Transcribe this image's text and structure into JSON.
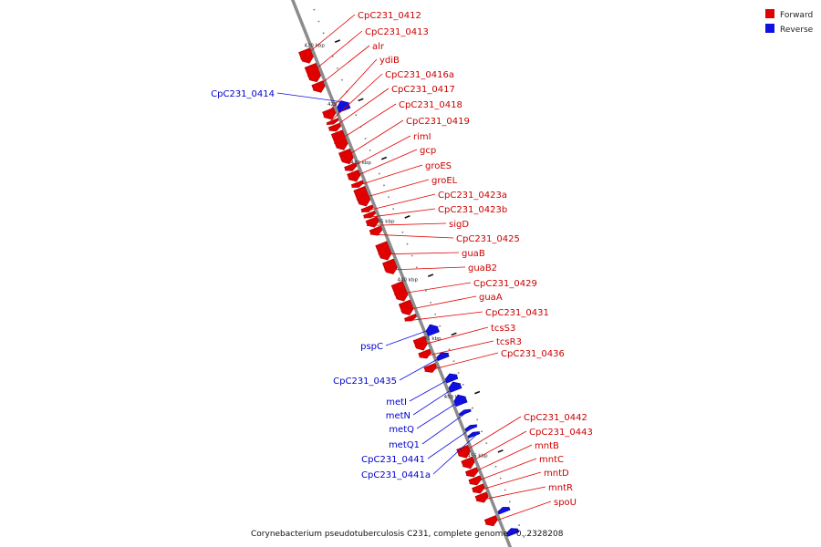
{
  "colors": {
    "forward": "#e00000",
    "reverse": "#1010e0",
    "backbone": "#8c8c8c",
    "forward_label": "#cc0000",
    "reverse_label": "#0000cc"
  },
  "legend": [
    {
      "label": "Forward",
      "strand": "forward"
    },
    {
      "label": "Reverse",
      "strand": "reverse"
    }
  ],
  "caption": "Corynebacterium pseudotuberculosis C231, complete genome - 0..2328208",
  "ticks": [
    {
      "label": "420 kbp",
      "kbp": 420
    },
    {
      "label": "425 kbp",
      "kbp": 425
    },
    {
      "label": "430 kbp",
      "kbp": 430
    },
    {
      "label": "435 kbp",
      "kbp": 435
    },
    {
      "label": "440 kbp",
      "kbp": 440
    },
    {
      "label": "445 kbp",
      "kbp": 445
    },
    {
      "label": "450 kbp",
      "kbp": 450
    },
    {
      "label": "455 kbp",
      "kbp": 455
    }
  ],
  "genes": [
    {
      "name": "CpC231_0412",
      "strand": "forward",
      "start": 419.7,
      "end": 420.8
    },
    {
      "name": "CpC231_0413",
      "strand": "forward",
      "start": 421.0,
      "end": 422.4
    },
    {
      "name": "alr",
      "strand": "forward",
      "start": 422.5,
      "end": 423.3
    },
    {
      "name": "ydiB",
      "strand": "forward",
      "start": 424.8,
      "end": 425.6
    },
    {
      "name": "CpC231_0414",
      "strand": "reverse",
      "start": 424.5,
      "end": 425.3
    },
    {
      "name": "CpC231_0416a",
      "strand": "forward",
      "start": 425.7,
      "end": 426.0
    },
    {
      "name": "CpC231_0417",
      "strand": "forward",
      "start": 426.1,
      "end": 426.6
    },
    {
      "name": "CpC231_0418",
      "strand": "forward",
      "start": 426.7,
      "end": 428.2
    },
    {
      "name": "CpC231_0419",
      "strand": "forward",
      "start": 428.3,
      "end": 429.4
    },
    {
      "name": "rimI",
      "strand": "forward",
      "start": 429.5,
      "end": 430.0
    },
    {
      "name": "gcp",
      "strand": "forward",
      "start": 430.1,
      "end": 430.9
    },
    {
      "name": "groES",
      "strand": "forward",
      "start": 431.0,
      "end": 431.4
    },
    {
      "name": "groEL",
      "strand": "forward",
      "start": 431.5,
      "end": 433.0
    },
    {
      "name": "CpC231_0423a",
      "strand": "forward",
      "start": 433.1,
      "end": 433.5
    },
    {
      "name": "CpC231_0423b",
      "strand": "forward",
      "start": 433.6,
      "end": 434.0
    },
    {
      "name": "sigD",
      "strand": "forward",
      "start": 434.1,
      "end": 434.8
    },
    {
      "name": "CpC231_0425",
      "strand": "forward",
      "start": 434.9,
      "end": 435.5
    },
    {
      "name": "guaB",
      "strand": "forward",
      "start": 436.2,
      "end": 437.6
    },
    {
      "name": "guaB2",
      "strand": "forward",
      "start": 437.7,
      "end": 438.8
    },
    {
      "name": "CpC231_0429",
      "strand": "forward",
      "start": 439.6,
      "end": 441.1
    },
    {
      "name": "guaA",
      "strand": "forward",
      "start": 441.2,
      "end": 442.3
    },
    {
      "name": "CpC231_0431",
      "strand": "forward",
      "start": 442.4,
      "end": 442.8
    },
    {
      "name": "pspC",
      "strand": "reverse",
      "start": 443.6,
      "end": 444.4
    },
    {
      "name": "tcsS3",
      "strand": "forward",
      "start": 444.3,
      "end": 445.3
    },
    {
      "name": "tcsR3",
      "strand": "forward",
      "start": 445.4,
      "end": 446.0
    },
    {
      "name": "CpC231_0436",
      "strand": "forward",
      "start": 446.6,
      "end": 447.2
    },
    {
      "name": "CpC231_0435",
      "strand": "reverse",
      "start": 446.0,
      "end": 446.5
    },
    {
      "name": "metI",
      "strand": "reverse",
      "start": 447.8,
      "end": 448.4
    },
    {
      "name": "metN",
      "strand": "reverse",
      "start": 448.5,
      "end": 449.2
    },
    {
      "name": "metQ",
      "strand": "reverse",
      "start": 449.6,
      "end": 450.4
    },
    {
      "name": "metQ1",
      "strand": "reverse",
      "start": 450.9,
      "end": 451.2
    },
    {
      "name": "CpC231_0441",
      "strand": "reverse",
      "start": 452.2,
      "end": 452.5
    },
    {
      "name": "CpC231_0441a",
      "strand": "reverse",
      "start": 452.8,
      "end": 453.1
    },
    {
      "name": "CpC231_0442",
      "strand": "forward",
      "start": 453.6,
      "end": 454.5
    },
    {
      "name": "CpC231_0443",
      "strand": "forward",
      "start": 454.6,
      "end": 455.4
    },
    {
      "name": "mntB",
      "strand": "forward",
      "start": 455.5,
      "end": 456.1
    },
    {
      "name": "mntC",
      "strand": "forward",
      "start": 456.2,
      "end": 456.8
    },
    {
      "name": "mntD",
      "strand": "forward",
      "start": 456.9,
      "end": 457.5
    },
    {
      "name": "mntR",
      "strand": "forward",
      "start": 457.6,
      "end": 458.3
    },
    {
      "name": "spoU",
      "strand": "forward",
      "start": 459.6,
      "end": 460.3
    },
    {
      "name": "",
      "strand": "reverse",
      "start": 459.2,
      "end": 459.6
    },
    {
      "name": "",
      "strand": "reverse",
      "start": 461.0,
      "end": 461.5
    }
  ]
}
